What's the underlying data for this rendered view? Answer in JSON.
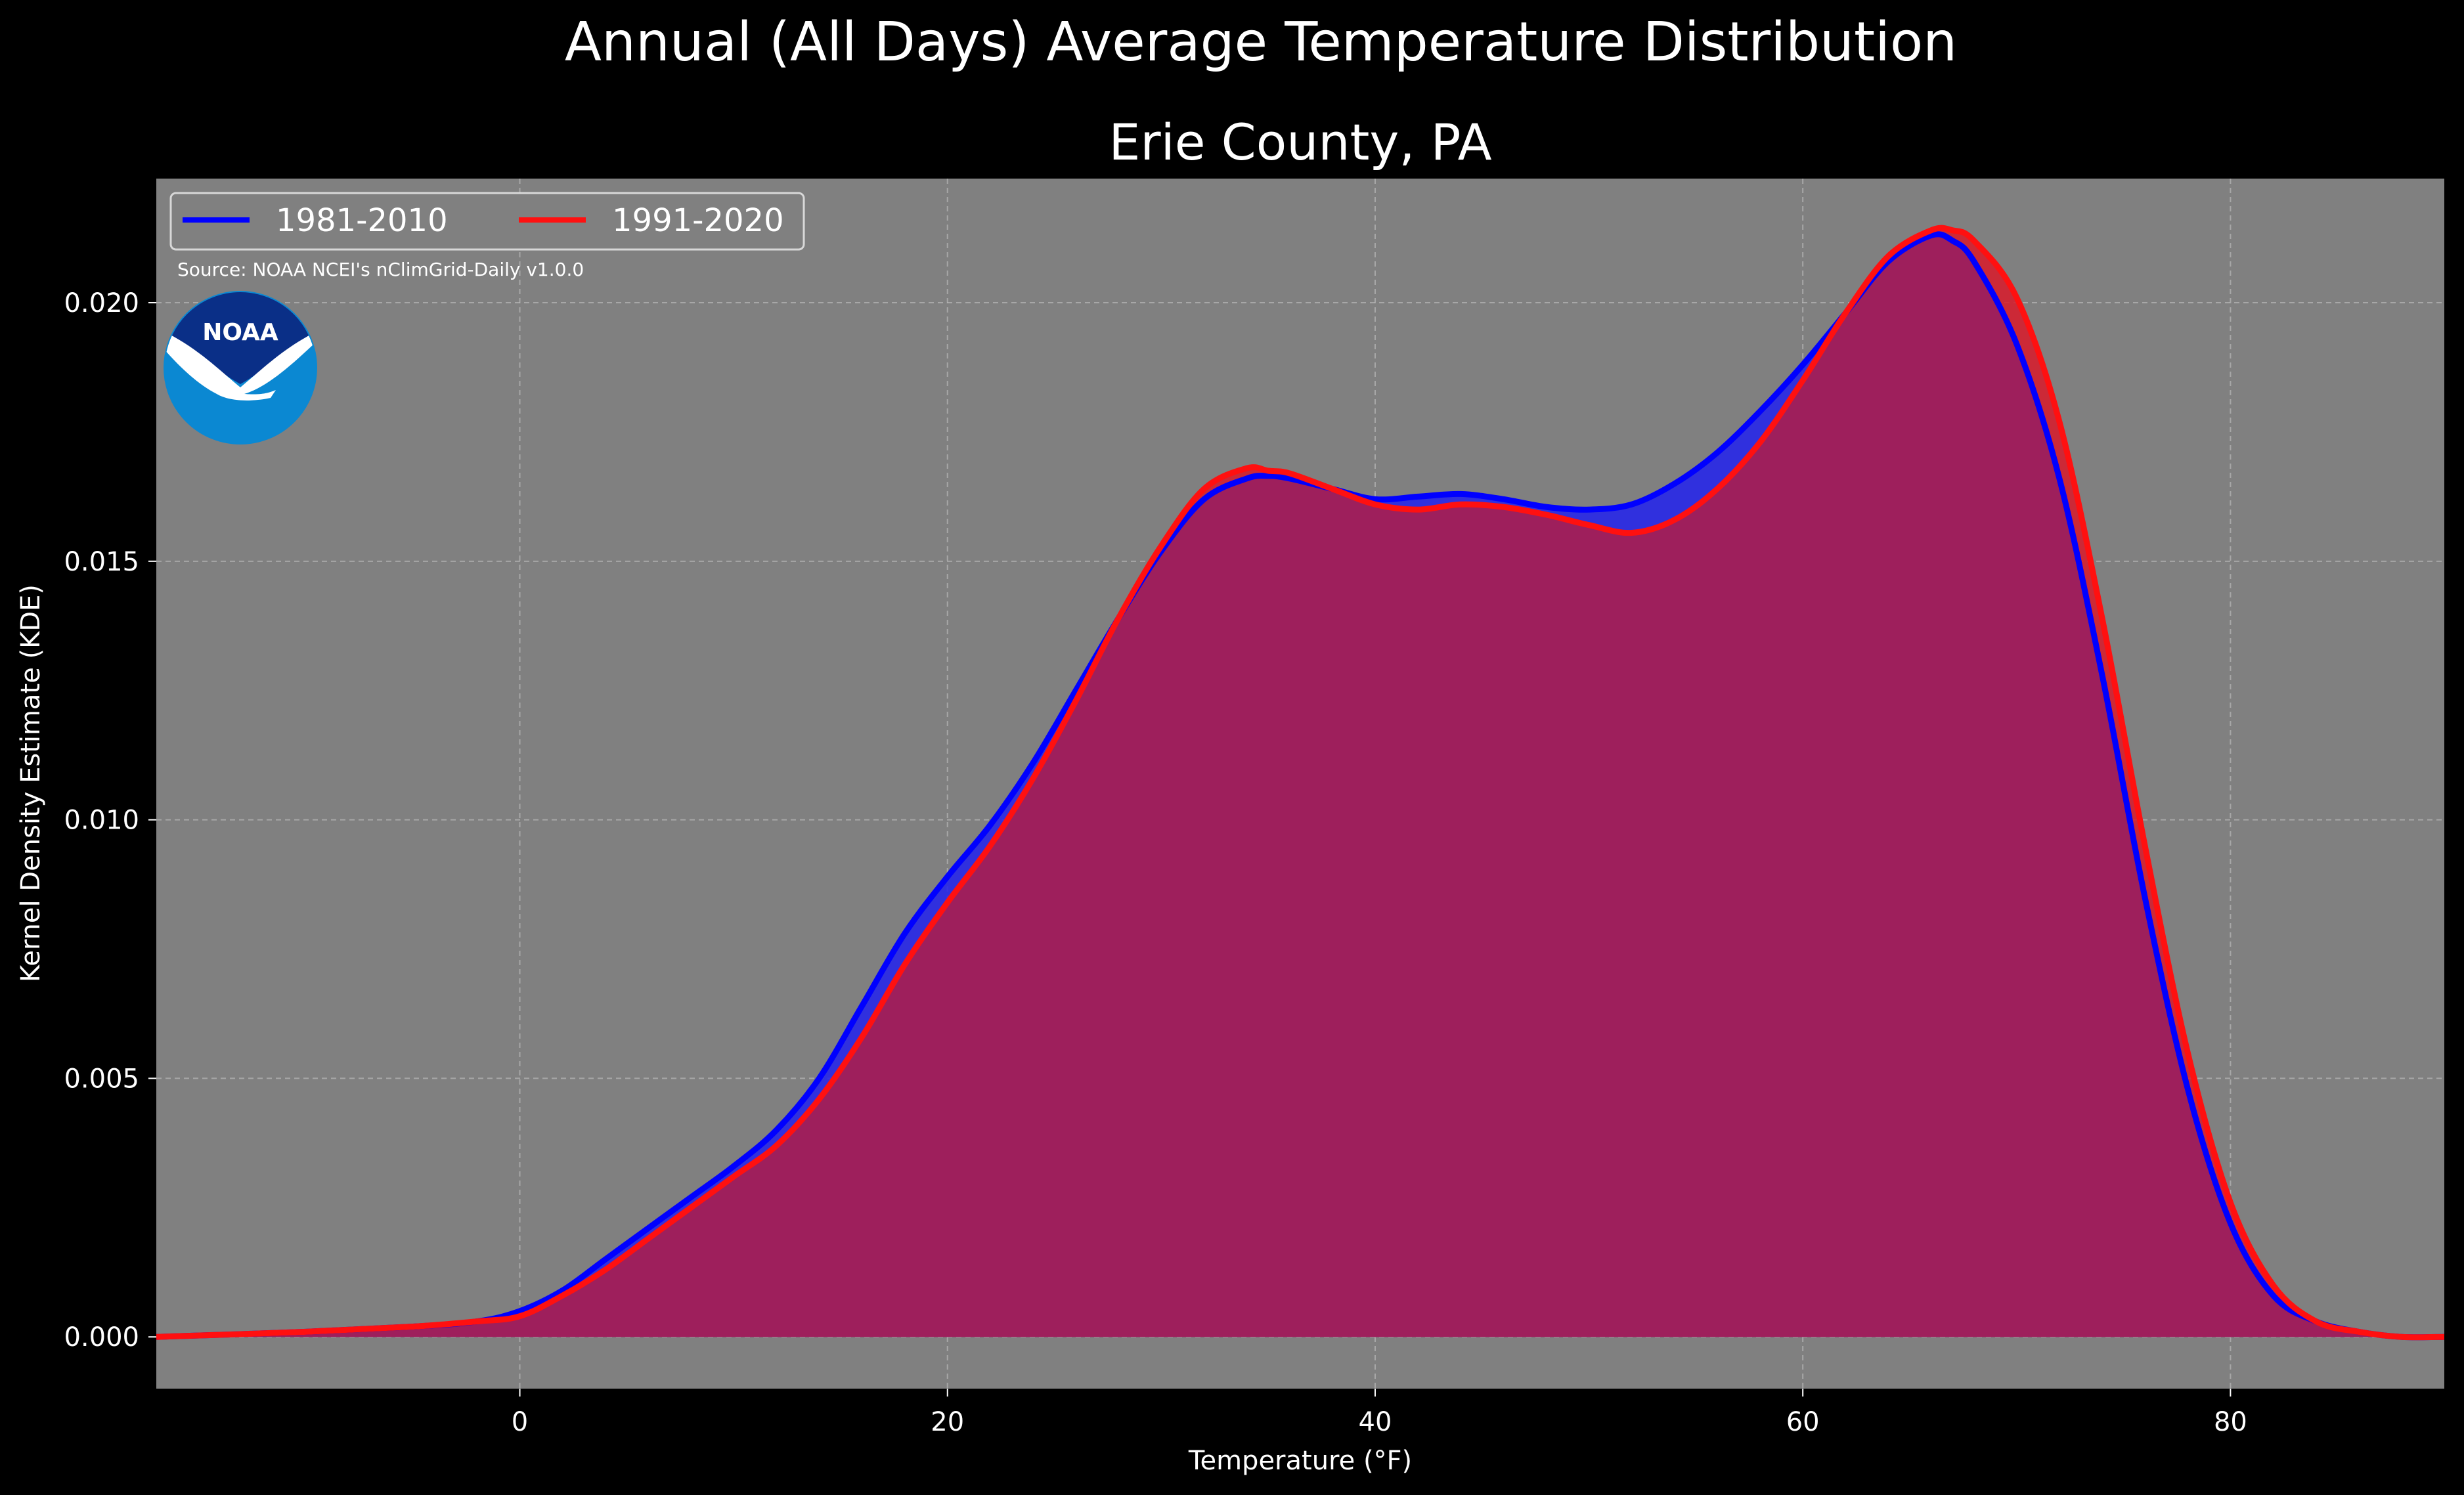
{
  "chart_data": {
    "type": "area",
    "title": "Annual (All Days) Average Temperature Distribution",
    "subtitle": "Erie County, PA",
    "xlabel": "Temperature ($^\\circ$F)",
    "xlabel_display": "Temperature (°F)",
    "ylabel": "Kernel Density Estimate (KDE)",
    "xlim": [
      -17,
      90
    ],
    "ylim": [
      -0.001,
      0.0224
    ],
    "x_ticks": [
      0,
      20,
      40,
      60,
      80
    ],
    "x_tick_labels": [
      "0",
      "20",
      "40",
      "60",
      "80"
    ],
    "y_ticks": [
      0.0,
      0.005,
      0.01,
      0.015,
      0.02
    ],
    "y_tick_labels": [
      "0.000",
      "0.005",
      "0.010",
      "0.015",
      "0.020"
    ],
    "grid": true,
    "legend_position": "top-left",
    "annotation": "Source: NOAA NCEI's nClimGrid-Daily v1.0.0",
    "series": [
      {
        "name": "1981-2010",
        "color": "#0000ff",
        "fill": "#2222ee",
        "x": [
          -17,
          -10,
          -5,
          -2,
          0,
          2,
          4,
          6,
          8,
          10,
          12,
          14,
          16,
          18,
          20,
          22,
          24,
          26,
          28,
          30,
          32,
          34,
          35,
          36,
          38,
          40,
          42,
          44,
          46,
          48,
          50,
          52,
          54,
          56,
          58,
          60,
          62,
          64,
          66,
          67,
          68,
          70,
          72,
          74,
          76,
          78,
          80,
          82,
          84,
          86,
          88,
          90
        ],
        "y": [
          0.0,
          0.0001,
          0.0002,
          0.0003,
          0.0005,
          0.0009,
          0.0015,
          0.0021,
          0.0027,
          0.0033,
          0.004,
          0.005,
          0.0064,
          0.0078,
          0.0089,
          0.0099,
          0.0111,
          0.0125,
          0.0139,
          0.0152,
          0.0162,
          0.0166,
          0.01665,
          0.0166,
          0.0164,
          0.0162,
          0.01625,
          0.0163,
          0.0162,
          0.01605,
          0.016,
          0.0161,
          0.0165,
          0.0171,
          0.0179,
          0.0188,
          0.0198,
          0.0208,
          0.0213,
          0.0212,
          0.0208,
          0.0192,
          0.0166,
          0.0128,
          0.0085,
          0.0048,
          0.0022,
          0.0008,
          0.0003,
          0.0001,
          0.0,
          0.0
        ]
      },
      {
        "name": "1991-2020",
        "color": "#ff1010",
        "fill": "#d91a2a",
        "x": [
          -17,
          -10,
          -5,
          -2,
          0,
          2,
          4,
          6,
          8,
          10,
          12,
          14,
          16,
          18,
          20,
          22,
          24,
          26,
          28,
          30,
          32,
          34,
          35,
          36,
          38,
          40,
          42,
          44,
          46,
          48,
          50,
          52,
          54,
          56,
          58,
          60,
          62,
          64,
          66,
          67,
          68,
          70,
          72,
          74,
          76,
          78,
          80,
          82,
          84,
          86,
          88,
          90
        ],
        "y": [
          0.0,
          0.0001,
          0.0002,
          0.0003,
          0.0004,
          0.0008,
          0.0013,
          0.0019,
          0.0025,
          0.0031,
          0.0037,
          0.0046,
          0.0058,
          0.0072,
          0.0084,
          0.0095,
          0.0108,
          0.0123,
          0.0139,
          0.0153,
          0.0164,
          0.0168,
          0.01675,
          0.0167,
          0.0164,
          0.0161,
          0.016,
          0.0161,
          0.01605,
          0.0159,
          0.0157,
          0.01555,
          0.0158,
          0.0164,
          0.0173,
          0.0185,
          0.0198,
          0.0209,
          0.0214,
          0.0214,
          0.0212,
          0.0201,
          0.0177,
          0.0139,
          0.0095,
          0.0055,
          0.0026,
          0.001,
          0.0003,
          0.0001,
          0.0,
          0.0
        ]
      }
    ]
  },
  "logo": {
    "text": "NOAA",
    "colors": {
      "top": "#0a2f87",
      "bottom": "#0b88d2",
      "bird": "#ffffff"
    }
  },
  "colors": {
    "background": "#000000",
    "plot_background": "#808080",
    "grid": "#b8b8b8",
    "overlap_fill": "#9e1f5c"
  }
}
